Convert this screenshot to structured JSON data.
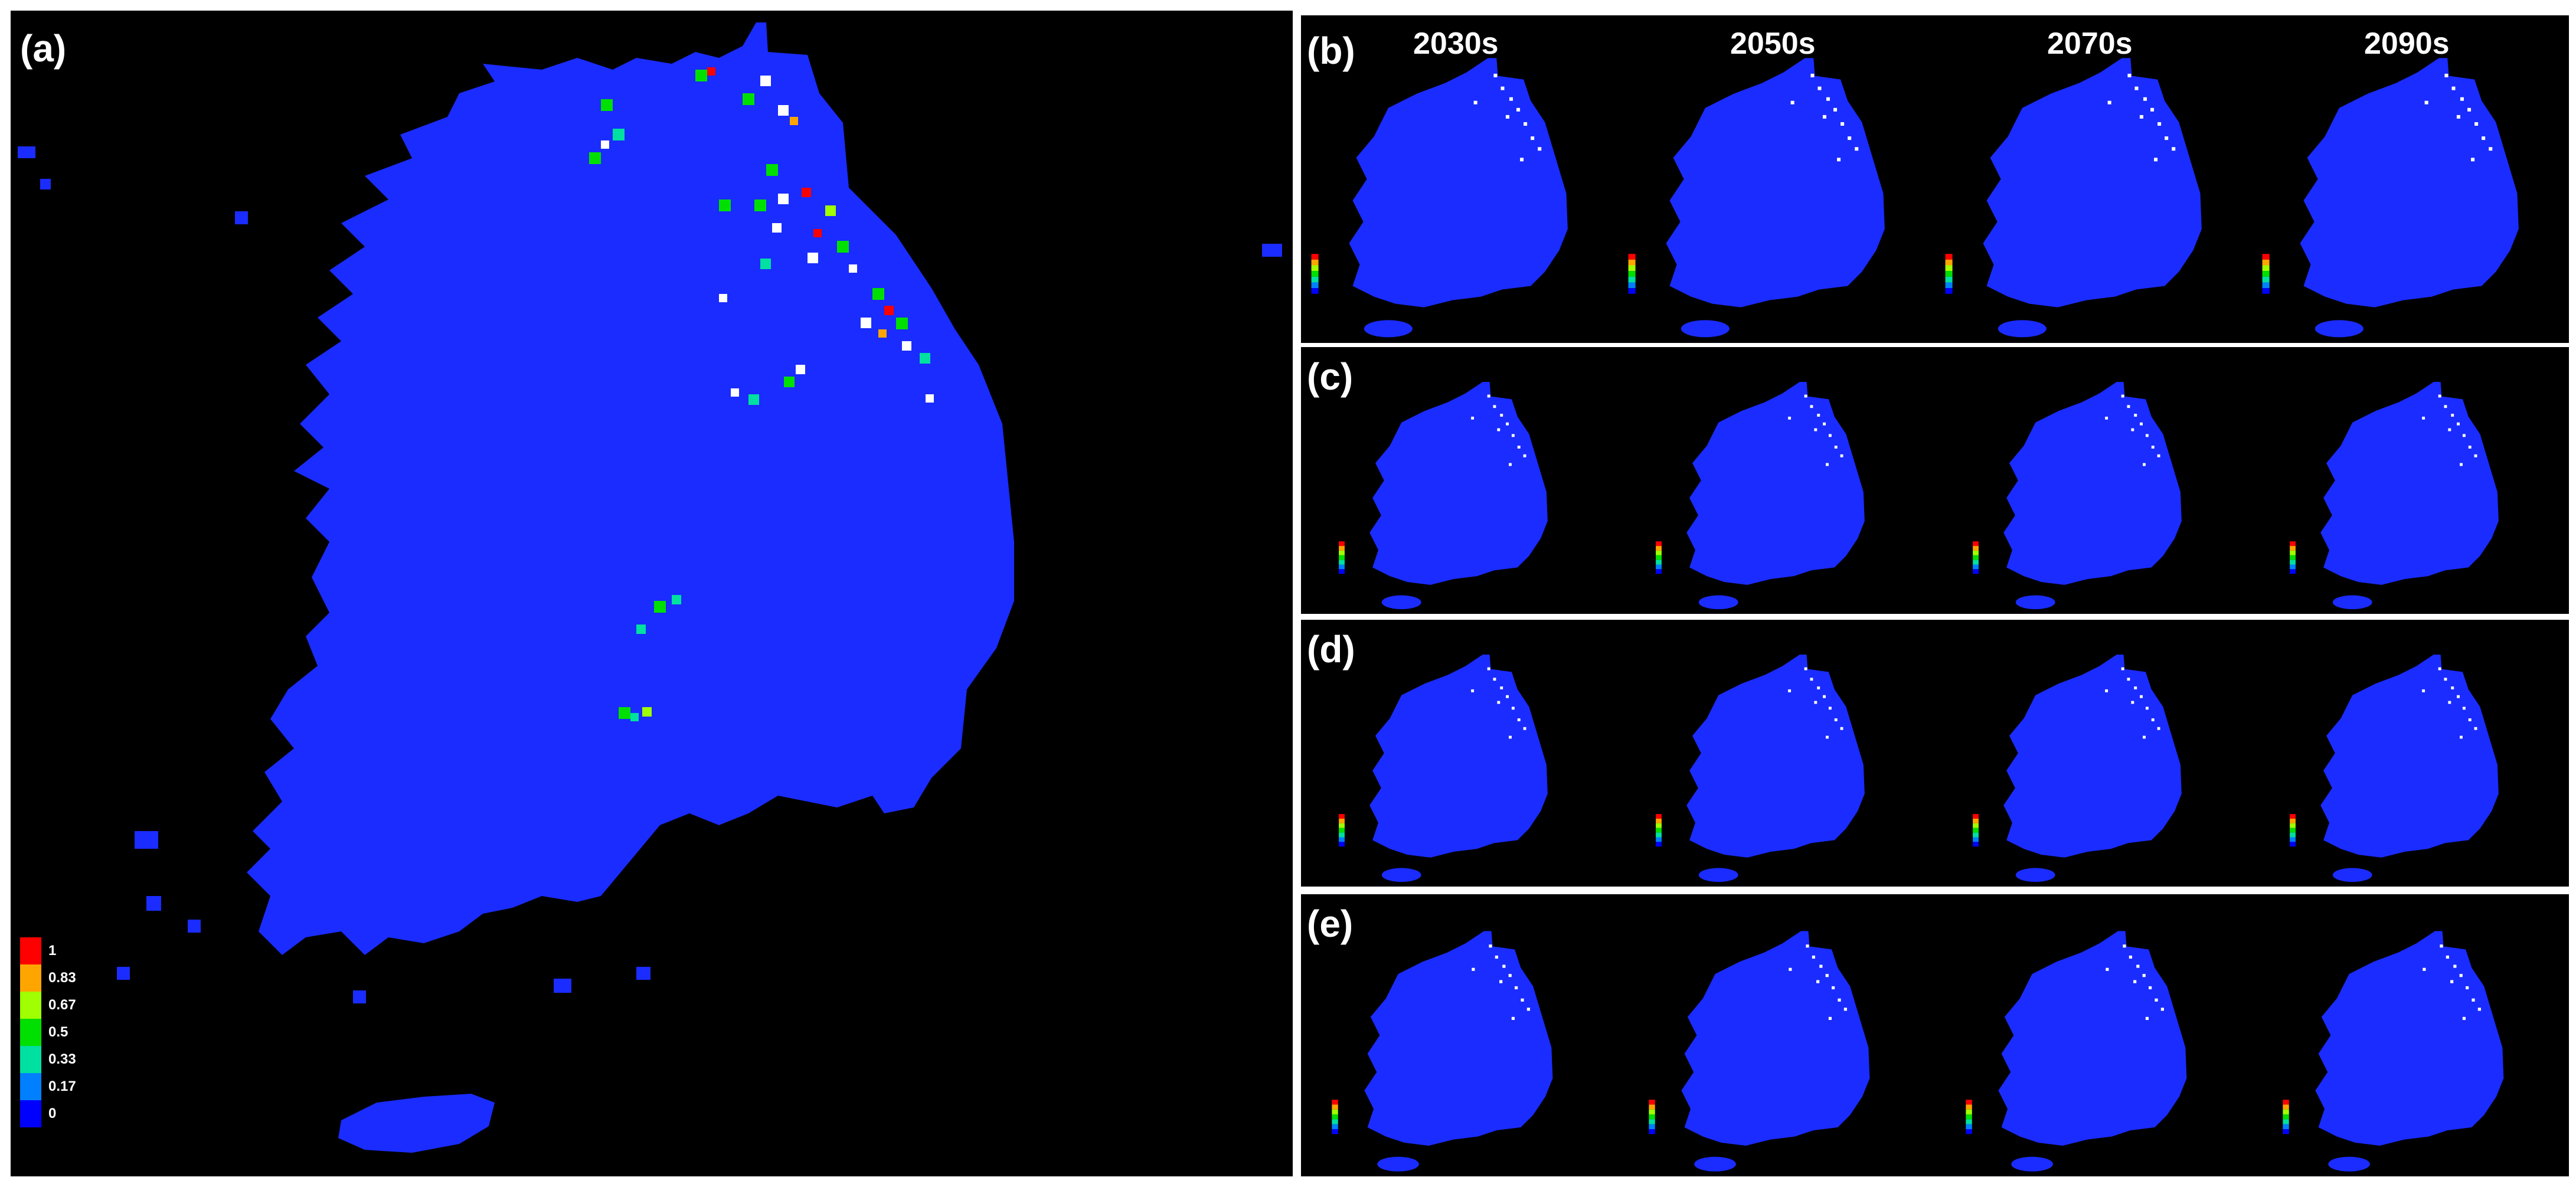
{
  "panels": {
    "main": {
      "label": "(a)"
    },
    "rows": [
      {
        "label": "(b)"
      },
      {
        "label": "(c)"
      },
      {
        "label": "(d)"
      },
      {
        "label": "(e)"
      }
    ]
  },
  "decades": [
    "2030s",
    "2050s",
    "2070s",
    "2090s"
  ],
  "legend": {
    "items": [
      {
        "label": "1",
        "color": "#ff0000"
      },
      {
        "label": "0.83",
        "color": "#ffa500"
      },
      {
        "label": "0.67",
        "color": "#a0ff00"
      },
      {
        "label": "0.5",
        "color": "#00e000"
      },
      {
        "label": "0.33",
        "color": "#00e0a0"
      },
      {
        "label": "0.17",
        "color": "#0080ff"
      },
      {
        "label": "0",
        "color": "#0000ff"
      }
    ]
  },
  "colors": {
    "background": "#000000",
    "land": "#1a2cff",
    "separator": "#ffffff",
    "hotspot_white": "#ffffff"
  }
}
